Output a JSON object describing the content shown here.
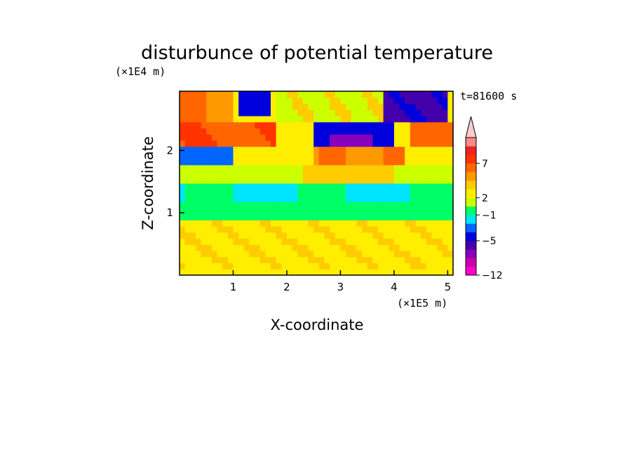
{
  "chart_data": {
    "type": "heatmap",
    "title": "disturbunce of potential temperature",
    "time_label": "t=81600 s",
    "xlabel": "X-coordinate",
    "ylabel": "Z-coordinate",
    "x_unit": "(×1E5 m)",
    "y_unit": "(×1E4 m)",
    "xlim": [
      0,
      5.1
    ],
    "ylim": [
      0,
      2.95
    ],
    "xticks": [
      "1",
      "2",
      "3",
      "4",
      "5"
    ],
    "yticks": [
      "1",
      "2"
    ],
    "colorbar": {
      "colors": [
        "#ff00cc",
        "#cc00aa",
        "#8800bb",
        "#4400aa",
        "#0000dd",
        "#0066ff",
        "#00e5ff",
        "#00ff66",
        "#ccff00",
        "#ffee00",
        "#ffcc00",
        "#ff9900",
        "#ff6600",
        "#ff3300",
        "#ee2222",
        "#ff8888",
        "#ffcccc"
      ],
      "labels": [
        "-12",
        "-5",
        "-1",
        "2",
        "7"
      ],
      "extend_top": true
    },
    "field": {
      "columns": 51,
      "rows": 30,
      "description_levels": "bands"
    }
  }
}
